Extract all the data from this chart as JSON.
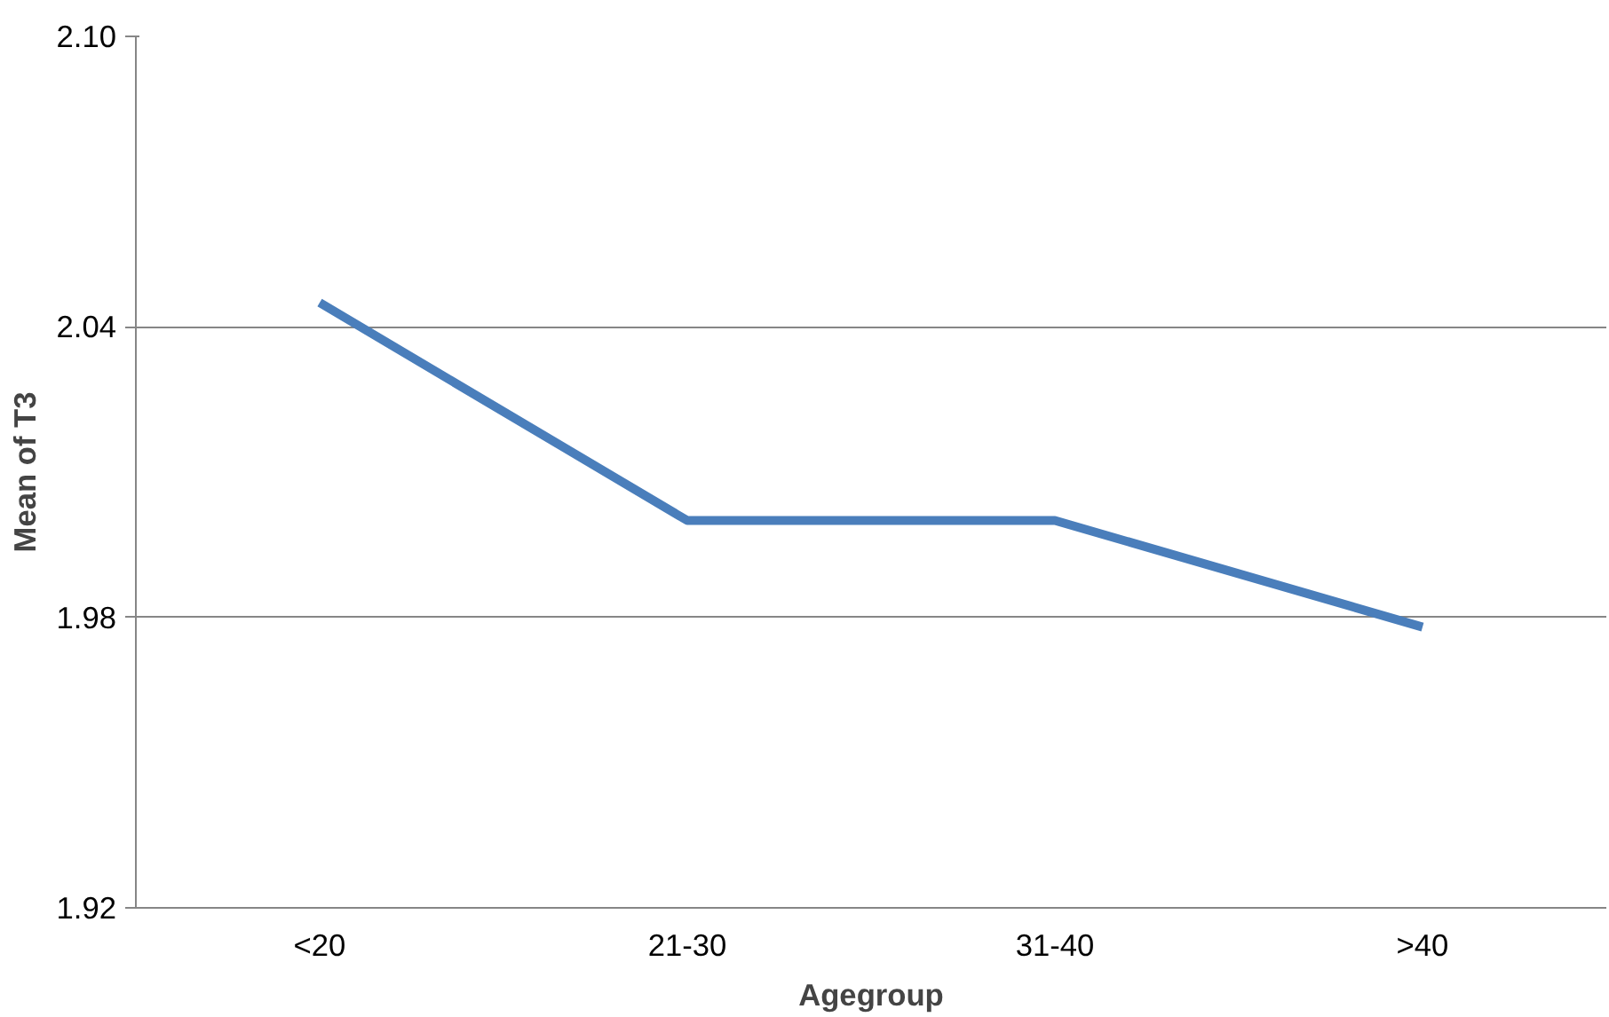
{
  "chart_data": {
    "type": "line",
    "xlabel": "Agegroup",
    "ylabel": "Mean of T3",
    "categories": [
      "<20",
      "21-30",
      "31-40",
      ">40"
    ],
    "series": [
      {
        "color": "#4a7ebb",
        "values": [
          2.045,
          2.0,
          2.0,
          1.978
        ]
      }
    ],
    "ylim": [
      1.92,
      2.1
    ],
    "yticks": [
      {
        "value": 1.92,
        "label": "1.92"
      },
      {
        "value": 1.98,
        "label": "1.98"
      },
      {
        "value": 2.04,
        "label": "2.04"
      },
      {
        "value": 2.1,
        "label": "2.10"
      }
    ],
    "grid": "y",
    "marker": "none",
    "line_style": "solid"
  }
}
